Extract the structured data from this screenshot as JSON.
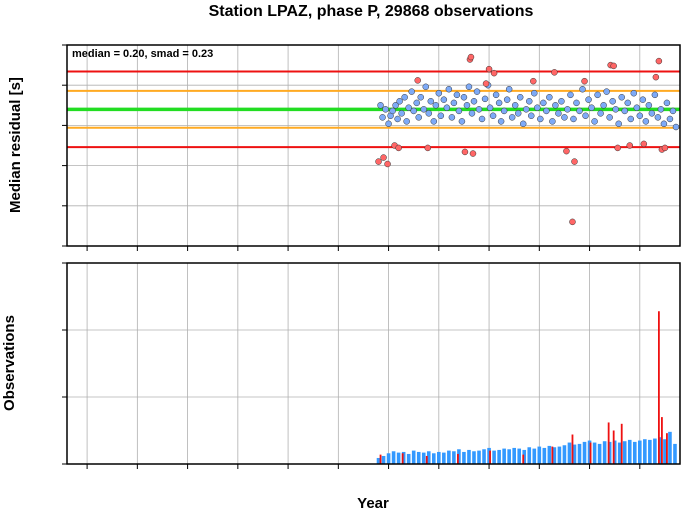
{
  "chart_data": [
    {
      "type": "scatter",
      "title": "Station LPAZ, phase P, 29868 observations",
      "xlabel": "",
      "ylabel": "Median residual [s]",
      "annotation": "median = 0.20, smad = 0.23",
      "xlim": [
        1963,
        2024
      ],
      "ylim": [
        -1.5,
        1.0
      ],
      "yticks": [
        "1.0",
        "0.5",
        "0.0",
        "-0.5",
        "-1.0",
        "-1.5"
      ],
      "grid": true,
      "reference_lines": [
        {
          "role": "median",
          "y": 0.2,
          "color": "#22dd22"
        },
        {
          "role": "1 smad",
          "y": 0.43,
          "color": "#ffaa22"
        },
        {
          "role": "-1 smad",
          "y": -0.03,
          "color": "#ffaa22"
        },
        {
          "role": "+2 smad",
          "y": 0.67,
          "color": "#ee1111"
        },
        {
          "role": "-2 smad",
          "y": -0.27,
          "color": "#ee1111"
        }
      ],
      "series": [
        {
          "color": "#7eaaf7",
          "points": [
            [
              1994.2,
              0.25
            ],
            [
              1994.4,
              0.1
            ],
            [
              1994.7,
              0.2
            ],
            [
              1995.0,
              0.02
            ],
            [
              1995.2,
              0.12
            ],
            [
              1995.4,
              0.18
            ],
            [
              1995.7,
              0.25
            ],
            [
              1995.9,
              0.08
            ],
            [
              1996.1,
              0.3
            ],
            [
              1996.3,
              0.15
            ],
            [
              1996.6,
              0.35
            ],
            [
              1996.8,
              0.05
            ],
            [
              1997.0,
              0.22
            ],
            [
              1997.3,
              0.42
            ],
            [
              1997.5,
              0.18
            ],
            [
              1997.8,
              0.28
            ],
            [
              1998.0,
              0.1
            ],
            [
              1998.2,
              0.35
            ],
            [
              1998.5,
              0.2
            ],
            [
              1998.7,
              0.48
            ],
            [
              1999.0,
              0.15
            ],
            [
              1999.2,
              0.3
            ],
            [
              1999.5,
              0.05
            ],
            [
              1999.7,
              0.25
            ],
            [
              2000.0,
              0.4
            ],
            [
              2000.2,
              0.12
            ],
            [
              2000.5,
              0.32
            ],
            [
              2000.8,
              0.22
            ],
            [
              2001.0,
              0.45
            ],
            [
              2001.3,
              0.1
            ],
            [
              2001.5,
              0.28
            ],
            [
              2001.8,
              0.38
            ],
            [
              2002.0,
              0.18
            ],
            [
              2002.3,
              0.05
            ],
            [
              2002.5,
              0.35
            ],
            [
              2002.8,
              0.25
            ],
            [
              2003.0,
              0.48
            ],
            [
              2003.3,
              0.15
            ],
            [
              2003.5,
              0.3
            ],
            [
              2003.8,
              0.42
            ],
            [
              2004.0,
              0.2
            ],
            [
              2004.3,
              0.08
            ],
            [
              2004.6,
              0.33
            ],
            [
              2004.9,
              0.5
            ],
            [
              2005.1,
              0.22
            ],
            [
              2005.4,
              0.12
            ],
            [
              2005.7,
              0.38
            ],
            [
              2006.0,
              0.28
            ],
            [
              2006.2,
              0.05
            ],
            [
              2006.5,
              0.18
            ],
            [
              2006.8,
              0.32
            ],
            [
              2007.0,
              0.45
            ],
            [
              2007.3,
              0.1
            ],
            [
              2007.6,
              0.25
            ],
            [
              2007.9,
              0.15
            ],
            [
              2008.1,
              0.35
            ],
            [
              2008.4,
              0.02
            ],
            [
              2008.7,
              0.2
            ],
            [
              2009.0,
              0.3
            ],
            [
              2009.2,
              0.12
            ],
            [
              2009.5,
              0.4
            ],
            [
              2009.8,
              0.22
            ],
            [
              2010.1,
              0.08
            ],
            [
              2010.4,
              0.28
            ],
            [
              2010.7,
              0.18
            ],
            [
              2011.0,
              0.35
            ],
            [
              2011.3,
              0.05
            ],
            [
              2011.6,
              0.25
            ],
            [
              2011.9,
              0.15
            ],
            [
              2012.2,
              0.3
            ],
            [
              2012.5,
              0.1
            ],
            [
              2012.8,
              0.2
            ],
            [
              2013.1,
              0.38
            ],
            [
              2013.4,
              0.08
            ],
            [
              2013.7,
              0.28
            ],
            [
              2014.0,
              0.18
            ],
            [
              2014.3,
              0.45
            ],
            [
              2014.6,
              0.12
            ],
            [
              2014.9,
              0.32
            ],
            [
              2015.2,
              0.22
            ],
            [
              2015.5,
              0.05
            ],
            [
              2015.8,
              0.38
            ],
            [
              2016.1,
              0.15
            ],
            [
              2016.4,
              0.25
            ],
            [
              2016.7,
              0.42
            ],
            [
              2017.0,
              0.1
            ],
            [
              2017.3,
              0.3
            ],
            [
              2017.6,
              0.2
            ],
            [
              2017.9,
              0.02
            ],
            [
              2018.2,
              0.35
            ],
            [
              2018.5,
              0.18
            ],
            [
              2018.8,
              0.28
            ],
            [
              2019.1,
              0.08
            ],
            [
              2019.4,
              0.4
            ],
            [
              2019.7,
              0.22
            ],
            [
              2020.0,
              0.12
            ],
            [
              2020.3,
              0.32
            ],
            [
              2020.6,
              0.05
            ],
            [
              2020.9,
              0.25
            ],
            [
              2021.2,
              0.15
            ],
            [
              2021.5,
              0.38
            ],
            [
              2021.8,
              0.1
            ],
            [
              2022.1,
              0.2
            ],
            [
              2022.4,
              0.02
            ],
            [
              2022.7,
              0.28
            ],
            [
              2023.0,
              0.08
            ],
            [
              2023.3,
              0.18
            ],
            [
              2023.6,
              -0.02
            ]
          ]
        },
        {
          "color": "#ff6666",
          "points": [
            [
              1994.0,
              -0.45
            ],
            [
              1994.5,
              -0.4
            ],
            [
              1994.9,
              -0.48
            ],
            [
              1995.6,
              -0.25
            ],
            [
              1996.0,
              -0.28
            ],
            [
              1997.9,
              0.56
            ],
            [
              1998.9,
              -0.28
            ],
            [
              2002.6,
              -0.33
            ],
            [
              2003.1,
              0.82
            ],
            [
              2003.2,
              0.85
            ],
            [
              2003.4,
              -0.35
            ],
            [
              2004.7,
              0.52
            ],
            [
              2005.0,
              0.7
            ],
            [
              2005.5,
              0.65
            ],
            [
              2009.4,
              0.55
            ],
            [
              2011.5,
              0.66
            ],
            [
              2012.7,
              -0.32
            ],
            [
              2013.3,
              -1.2
            ],
            [
              2013.5,
              -0.45
            ],
            [
              2014.5,
              0.55
            ],
            [
              2017.1,
              0.75
            ],
            [
              2017.4,
              0.74
            ],
            [
              2017.8,
              -0.28
            ],
            [
              2019.0,
              -0.25
            ],
            [
              2020.4,
              -0.23
            ],
            [
              2021.6,
              0.6
            ],
            [
              2021.9,
              0.8
            ],
            [
              2022.2,
              -0.3
            ],
            [
              2022.5,
              -0.28
            ]
          ]
        }
      ]
    },
    {
      "type": "bar",
      "title": "",
      "xlabel": "Year",
      "ylabel": "Observations",
      "xlim": [
        1963,
        2024
      ],
      "ylim": [
        0,
        1500
      ],
      "xticks": [
        "1965",
        "1970",
        "1975",
        "1980",
        "1985",
        "1990",
        "1995",
        "2000",
        "2005",
        "2010",
        "2015",
        "2020"
      ],
      "yticks": [
        "1500",
        "1000",
        "500",
        "0"
      ],
      "grid": true,
      "series": [
        {
          "color": "#3399ff",
          "x": [
            1994.0,
            1994.5,
            1995.0,
            1995.5,
            1996.0,
            1996.5,
            1997.0,
            1997.5,
            1998.0,
            1998.5,
            1999.0,
            1999.5,
            2000.0,
            2000.5,
            2001.0,
            2001.5,
            2002.0,
            2002.5,
            2003.0,
            2003.5,
            2004.0,
            2004.5,
            2005.0,
            2005.5,
            2006.0,
            2006.5,
            2007.0,
            2007.5,
            2008.0,
            2008.5,
            2009.0,
            2009.5,
            2010.0,
            2010.5,
            2011.0,
            2011.5,
            2012.0,
            2012.5,
            2013.0,
            2013.5,
            2014.0,
            2014.5,
            2015.0,
            2015.5,
            2016.0,
            2016.5,
            2017.0,
            2017.5,
            2018.0,
            2018.5,
            2019.0,
            2019.5,
            2020.0,
            2020.5,
            2021.0,
            2021.5,
            2022.0,
            2022.5,
            2023.0,
            2023.5
          ],
          "values": [
            45,
            60,
            80,
            95,
            85,
            90,
            75,
            100,
            90,
            85,
            95,
            80,
            90,
            85,
            100,
            95,
            110,
            90,
            105,
            95,
            100,
            110,
            120,
            100,
            105,
            115,
            110,
            120,
            115,
            105,
            125,
            115,
            130,
            120,
            135,
            125,
            130,
            140,
            160,
            145,
            150,
            165,
            175,
            160,
            150,
            170,
            165,
            175,
            160,
            170,
            180,
            165,
            175,
            185,
            180,
            190,
            200,
            185,
            240,
            150
          ]
        },
        {
          "color": "#ee1111",
          "x": [
            1994.2,
            1996.4,
            1998.8,
            2001.9,
            2005.1,
            2008.4,
            2011.3,
            2013.3,
            2015.1,
            2016.9,
            2017.4,
            2018.2,
            2021.9,
            2022.2,
            2022.7
          ],
          "values": [
            70,
            80,
            60,
            75,
            100,
            70,
            130,
            220,
            160,
            310,
            250,
            300,
            1140,
            350,
            230
          ]
        }
      ]
    }
  ]
}
